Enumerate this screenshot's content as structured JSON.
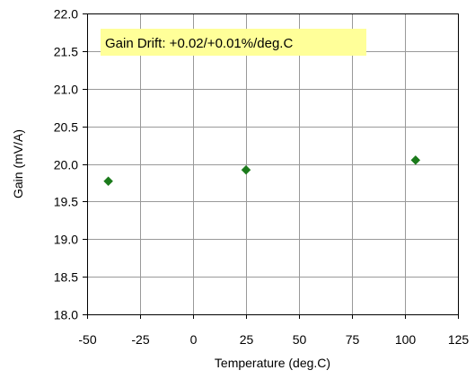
{
  "chart_data": {
    "type": "scatter",
    "title": "",
    "xlabel": "Temperature (deg.C)",
    "ylabel": "Gain (mV/A)",
    "xlim": [
      -50,
      125
    ],
    "ylim": [
      18.0,
      22.0
    ],
    "xticks": [
      -50,
      -25,
      0,
      25,
      50,
      75,
      100,
      125
    ],
    "yticks": [
      18.0,
      18.5,
      19.0,
      19.5,
      20.0,
      20.5,
      21.0,
      21.5,
      22.0
    ],
    "grid": true,
    "annotation": "Gain Drift: +0.02/+0.01%/deg.C",
    "series": [
      {
        "marker": "diamond",
        "color": "#1b7a1b",
        "x": [
          -40,
          25,
          105
        ],
        "y": [
          19.77,
          19.92,
          20.05
        ]
      }
    ]
  },
  "colors": {
    "annotation_bg": "#ffff99",
    "grid": "#999999",
    "axis": "#000000"
  }
}
